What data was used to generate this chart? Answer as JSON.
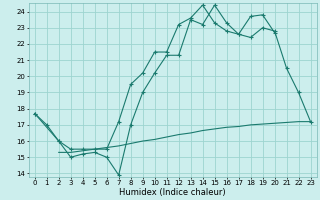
{
  "xlabel": "Humidex (Indice chaleur)",
  "bg_color": "#cceeed",
  "grid_color": "#9dd4d0",
  "line_color": "#1a7a6e",
  "xlim": [
    -0.5,
    23.5
  ],
  "ylim": [
    13.8,
    24.5
  ],
  "yticks": [
    14,
    15,
    16,
    17,
    18,
    19,
    20,
    21,
    22,
    23,
    24
  ],
  "xticks": [
    0,
    1,
    2,
    3,
    4,
    5,
    6,
    7,
    8,
    9,
    10,
    11,
    12,
    13,
    14,
    15,
    16,
    17,
    18,
    19,
    20,
    21,
    22,
    23
  ],
  "line1_x": [
    0,
    1,
    2,
    3,
    4,
    5,
    6,
    7,
    8,
    9,
    10,
    11,
    12,
    13,
    14,
    15,
    16,
    17,
    18,
    19,
    20,
    21,
    22,
    23
  ],
  "line1_y": [
    17.7,
    17.0,
    16.0,
    15.0,
    15.2,
    15.3,
    15.0,
    13.9,
    17.0,
    19.0,
    20.2,
    21.3,
    21.3,
    23.5,
    23.2,
    24.4,
    23.3,
    22.6,
    22.4,
    23.0,
    22.8,
    20.5,
    19.0,
    17.2
  ],
  "line2_x": [
    0,
    2,
    3,
    4,
    5,
    6,
    7,
    8,
    9,
    10,
    11,
    12,
    13,
    14,
    15,
    16,
    17,
    18,
    19,
    20
  ],
  "line2_y": [
    17.7,
    16.0,
    15.5,
    15.5,
    15.5,
    15.5,
    17.2,
    19.5,
    20.2,
    21.5,
    21.5,
    23.2,
    23.6,
    24.4,
    23.3,
    22.8,
    22.6,
    23.7,
    23.8,
    22.7
  ],
  "line3_x": [
    2,
    3,
    4,
    5,
    6,
    7,
    8,
    9,
    10,
    11,
    12,
    13,
    14,
    15,
    16,
    17,
    18,
    19,
    20,
    21,
    22,
    23
  ],
  "line3_y": [
    15.3,
    15.3,
    15.4,
    15.5,
    15.6,
    15.7,
    15.85,
    16.0,
    16.1,
    16.25,
    16.4,
    16.5,
    16.65,
    16.75,
    16.85,
    16.9,
    17.0,
    17.05,
    17.1,
    17.15,
    17.2,
    17.2
  ]
}
